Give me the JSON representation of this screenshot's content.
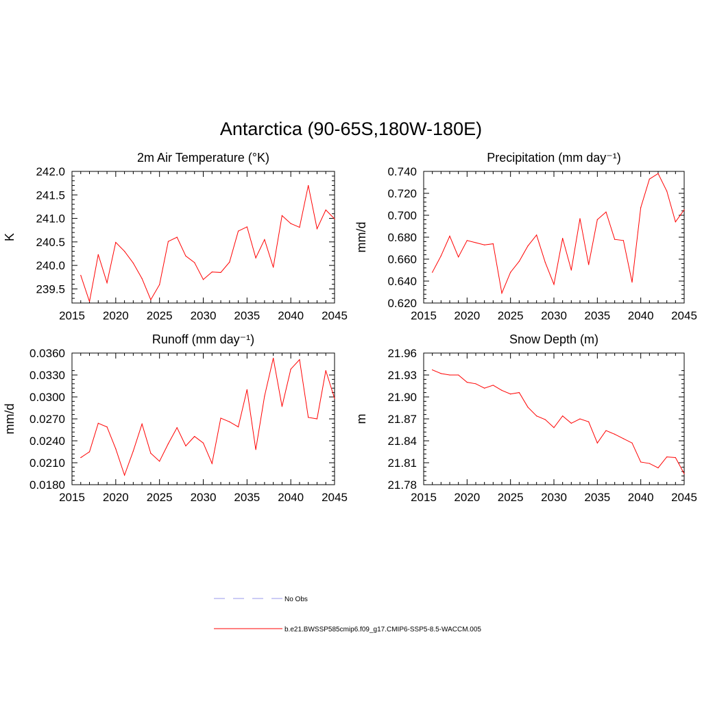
{
  "title": "Antarctica (90-65S,180W-180E)",
  "colors": {
    "model": "#ff0000",
    "obs": "#9999ee",
    "axis": "#000000"
  },
  "legend": {
    "obs_label": "No Obs",
    "model_label": "b.e21.BWSSP585cmip6.f09_g17.CMIP6-SSP5-8.5-WACCM.005"
  },
  "chart_data": [
    {
      "type": "line",
      "title": "2m Air Temperature (°K)",
      "ylabel": "K",
      "xlabel": "",
      "xlim": [
        2015,
        2045
      ],
      "ylim": [
        239.2,
        242.0
      ],
      "xticks": [
        "2015",
        "2020",
        "2025",
        "2030",
        "2035",
        "2040",
        "2045"
      ],
      "yticks": [
        "239.5",
        "240.0",
        "240.5",
        "241.0",
        "241.5",
        "242.0"
      ],
      "ytick_values": [
        239.5,
        240.0,
        240.5,
        241.0,
        241.5,
        242.0
      ],
      "x": [
        2016,
        2017,
        2018,
        2019,
        2020,
        2021,
        2022,
        2023,
        2024,
        2025,
        2026,
        2027,
        2028,
        2029,
        2030,
        2031,
        2032,
        2033,
        2034,
        2035,
        2036,
        2037,
        2038,
        2039,
        2040,
        2041,
        2042,
        2043,
        2044,
        2045
      ],
      "series": [
        {
          "values": [
            239.79,
            239.23,
            240.23,
            239.63,
            240.49,
            240.3,
            240.05,
            239.72,
            239.27,
            239.59,
            240.51,
            240.6,
            240.2,
            240.06,
            239.7,
            239.86,
            239.85,
            240.07,
            240.73,
            240.82,
            240.16,
            240.55,
            239.96,
            241.06,
            240.89,
            240.81,
            241.7,
            240.78,
            241.18,
            240.99
          ]
        }
      ]
    },
    {
      "type": "line",
      "title": "Precipitation (mm day⁻¹)",
      "ylabel": "mm/d",
      "xlabel": "",
      "xlim": [
        2015,
        2045
      ],
      "ylim": [
        0.62,
        0.74
      ],
      "xticks": [
        "2015",
        "2020",
        "2025",
        "2030",
        "2035",
        "2040",
        "2045"
      ],
      "yticks": [
        "0.620",
        "0.640",
        "0.660",
        "0.680",
        "0.700",
        "0.720",
        "0.740"
      ],
      "ytick_values": [
        0.62,
        0.64,
        0.66,
        0.68,
        0.7,
        0.72,
        0.74
      ],
      "x": [
        2016,
        2017,
        2018,
        2019,
        2020,
        2021,
        2022,
        2023,
        2024,
        2025,
        2026,
        2027,
        2028,
        2029,
        2030,
        2031,
        2032,
        2033,
        2034,
        2035,
        2036,
        2037,
        2038,
        2039,
        2040,
        2041,
        2042,
        2043,
        2044,
        2045
      ],
      "series": [
        {
          "values": [
            0.648,
            0.663,
            0.681,
            0.662,
            0.677,
            0.675,
            0.673,
            0.674,
            0.629,
            0.648,
            0.658,
            0.672,
            0.682,
            0.657,
            0.637,
            0.679,
            0.65,
            0.697,
            0.655,
            0.696,
            0.703,
            0.678,
            0.677,
            0.639,
            0.707,
            0.733,
            0.738,
            0.722,
            0.694,
            0.705
          ]
        }
      ]
    },
    {
      "type": "line",
      "title": "Runoff (mm day⁻¹)",
      "ylabel": "mm/d",
      "xlabel": "",
      "xlim": [
        2015,
        2045
      ],
      "ylim": [
        0.018,
        0.036
      ],
      "xticks": [
        "2015",
        "2020",
        "2025",
        "2030",
        "2035",
        "2040",
        "2045"
      ],
      "yticks": [
        "0.0180",
        "0.0210",
        "0.0240",
        "0.0270",
        "0.0300",
        "0.0330",
        "0.0360"
      ],
      "ytick_values": [
        0.018,
        0.021,
        0.024,
        0.027,
        0.03,
        0.033,
        0.036
      ],
      "x": [
        2016,
        2017,
        2018,
        2019,
        2020,
        2021,
        2022,
        2023,
        2024,
        2025,
        2026,
        2027,
        2028,
        2029,
        2030,
        2031,
        2032,
        2033,
        2034,
        2035,
        2036,
        2037,
        2038,
        2039,
        2040,
        2041,
        2042,
        2043,
        2044,
        2045
      ],
      "series": [
        {
          "values": [
            0.0217,
            0.0225,
            0.0264,
            0.0259,
            0.0229,
            0.0193,
            0.0226,
            0.0263,
            0.0223,
            0.0212,
            0.0236,
            0.0258,
            0.0233,
            0.0246,
            0.0237,
            0.0209,
            0.0271,
            0.0266,
            0.0259,
            0.031,
            0.0228,
            0.0301,
            0.0353,
            0.0287,
            0.0338,
            0.0351,
            0.0272,
            0.027,
            0.0336,
            0.0298
          ]
        }
      ]
    },
    {
      "type": "line",
      "title": "Snow Depth (m)",
      "ylabel": "m",
      "xlabel": "",
      "xlim": [
        2015,
        2045
      ],
      "ylim": [
        21.78,
        21.96
      ],
      "xticks": [
        "2015",
        "2020",
        "2025",
        "2030",
        "2035",
        "2040",
        "2045"
      ],
      "yticks": [
        "21.78",
        "21.81",
        "21.84",
        "21.87",
        "21.90",
        "21.93",
        "21.96"
      ],
      "ytick_values": [
        21.78,
        21.81,
        21.84,
        21.87,
        21.9,
        21.93,
        21.96
      ],
      "x": [
        2016,
        2017,
        2018,
        2019,
        2020,
        2021,
        2022,
        2023,
        2024,
        2025,
        2026,
        2027,
        2028,
        2029,
        2030,
        2031,
        2032,
        2033,
        2034,
        2035,
        2036,
        2037,
        2038,
        2039,
        2040,
        2041,
        2042,
        2043,
        2044,
        2045
      ],
      "series": [
        {
          "values": [
            21.937,
            21.932,
            21.93,
            21.93,
            21.92,
            21.918,
            21.912,
            21.916,
            21.909,
            21.904,
            21.906,
            21.886,
            21.874,
            21.869,
            21.858,
            21.874,
            21.864,
            21.87,
            21.866,
            21.837,
            21.854,
            21.849,
            21.843,
            21.837,
            21.811,
            21.809,
            21.803,
            21.818,
            21.817,
            21.795
          ]
        }
      ]
    }
  ]
}
